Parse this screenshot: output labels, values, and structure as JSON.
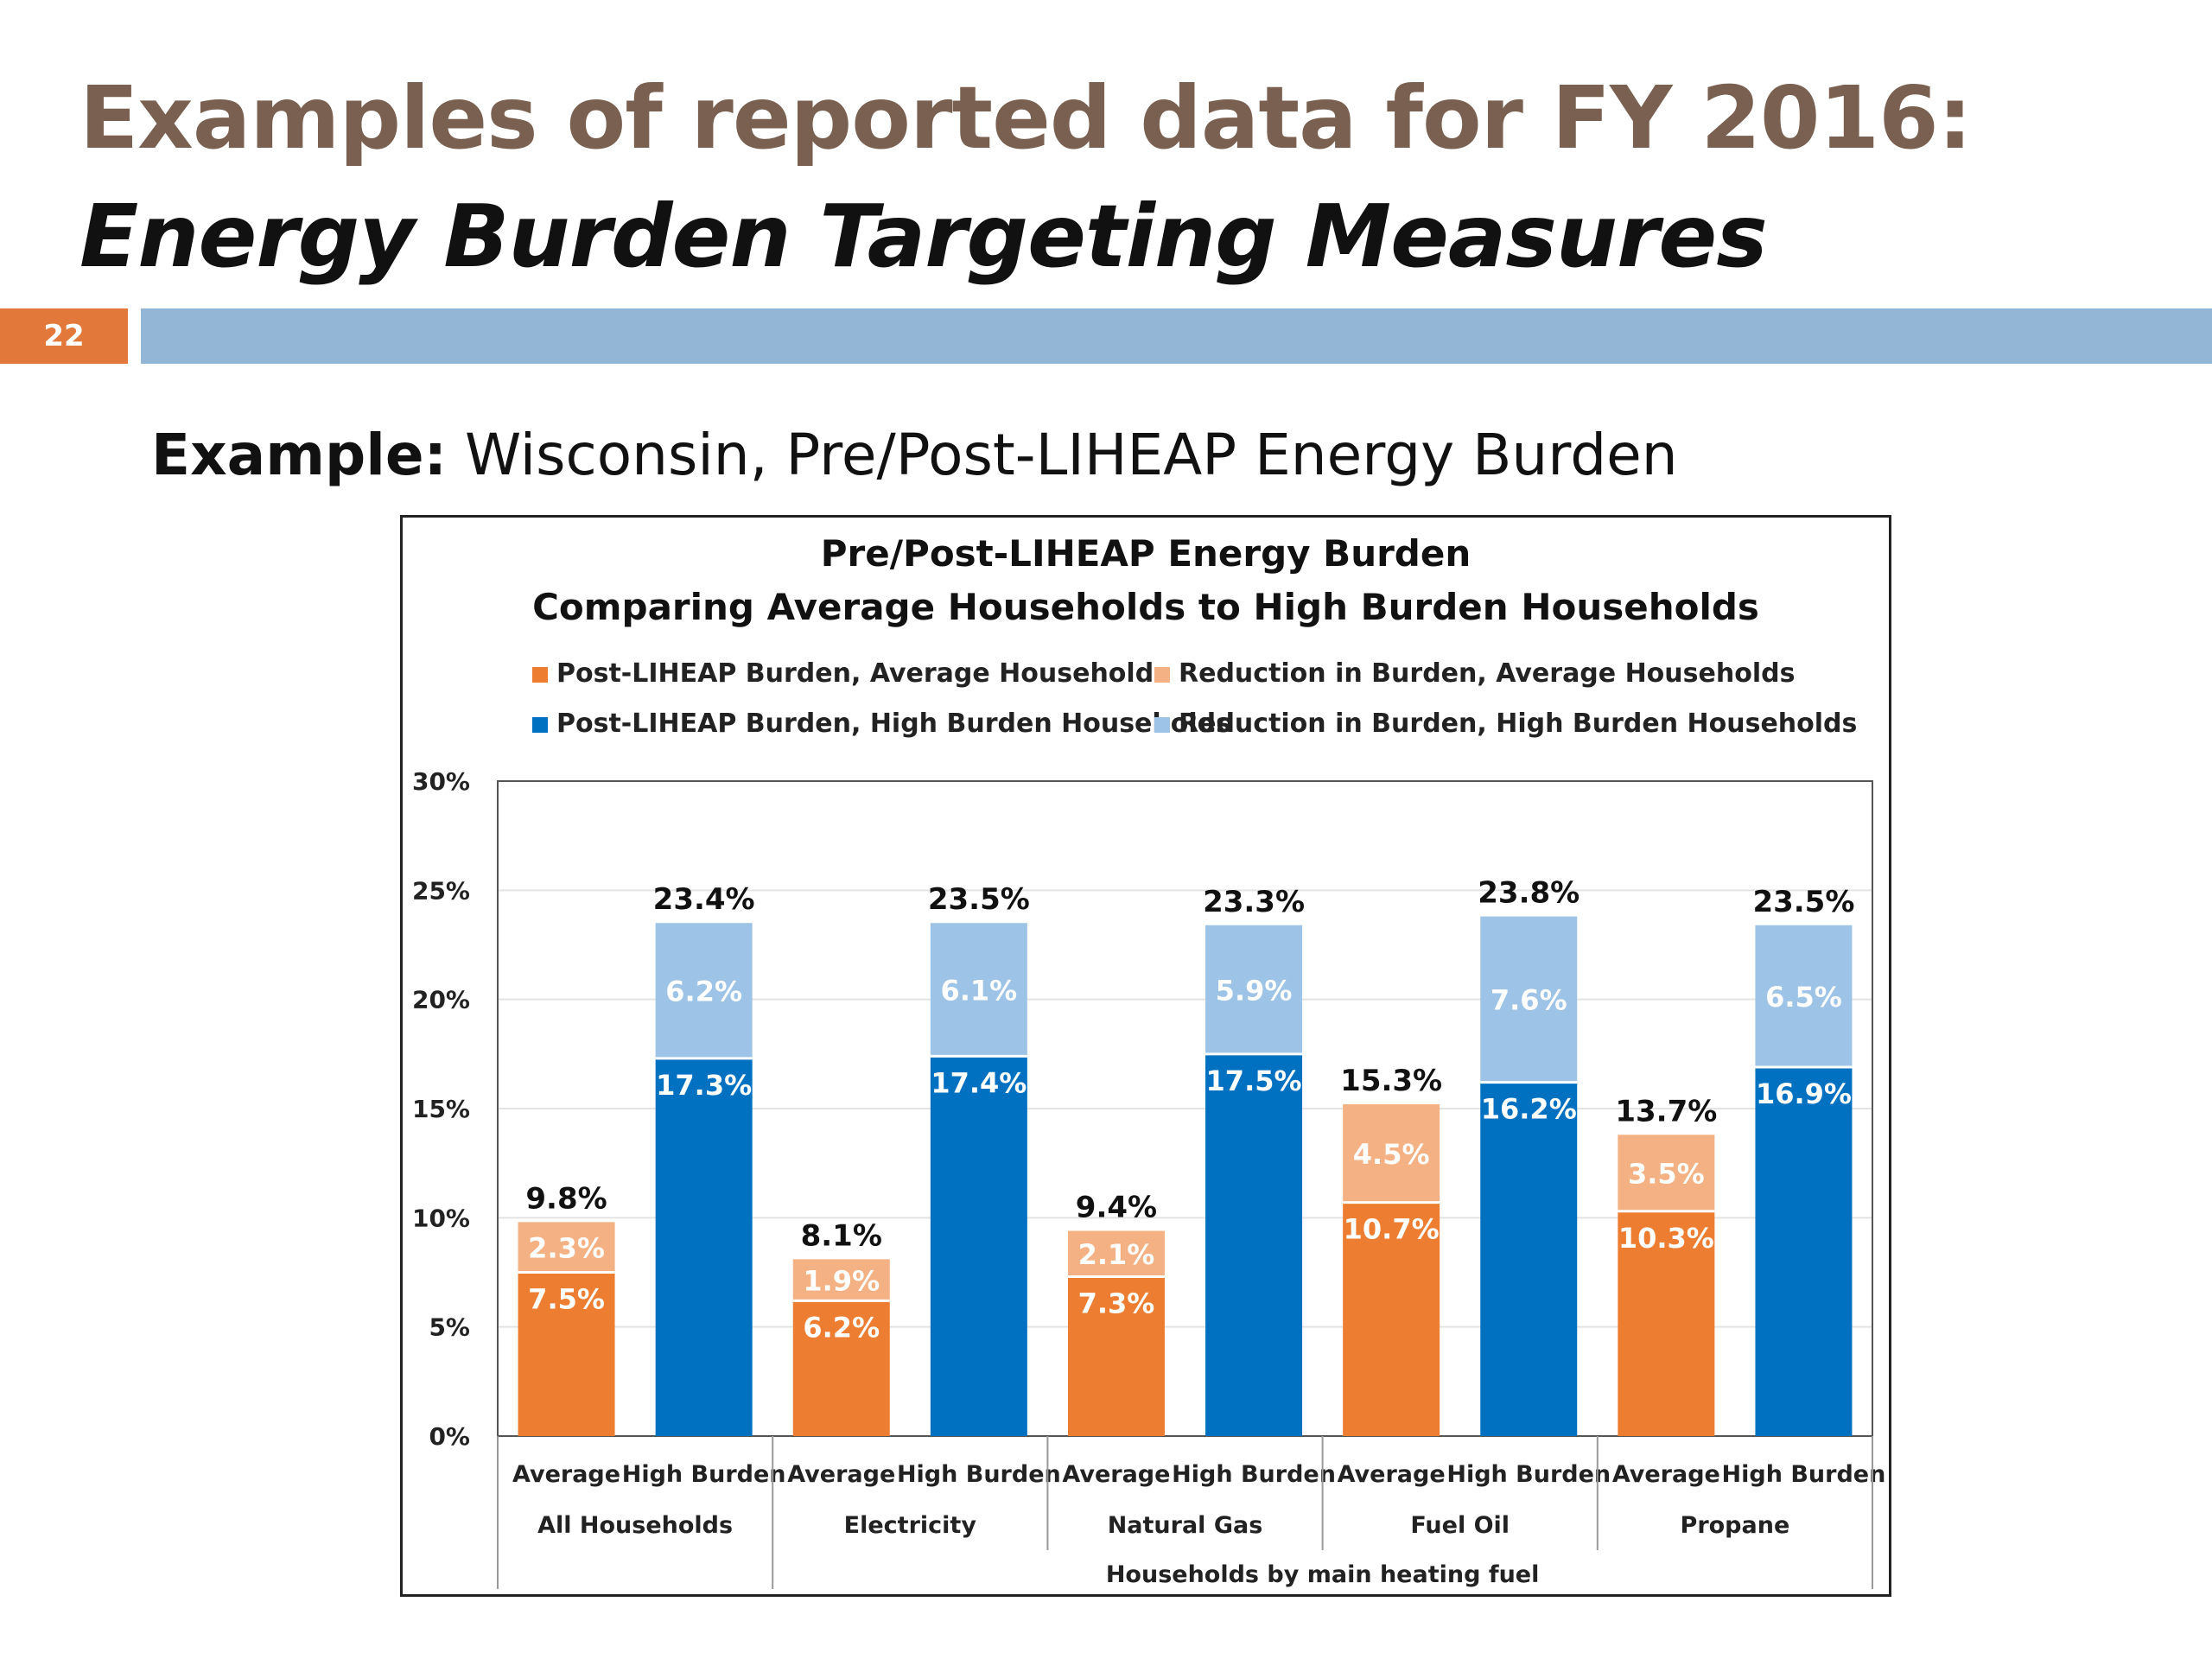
{
  "slide": {
    "title": "Examples of reported data for FY 2016:",
    "subtitle": "Energy Burden Targeting Measures",
    "page_number": "22",
    "example_label": "Example:",
    "example_text": "Wisconsin, Pre/Post-LIHEAP Energy Burden"
  },
  "colors": {
    "post_average": "#ed7d31",
    "reduction_average": "#f4b183",
    "post_high": "#0070c0",
    "reduction_high": "#9dc3e6",
    "title_brown": "#7a6050",
    "badge_orange": "#e2793a",
    "rule_blue": "#93b6d6"
  },
  "chart_data": {
    "type": "bar",
    "stacked": true,
    "title_lines": [
      "Pre/Post-LIHEAP Energy Burden",
      "Comparing Average Households to High Burden Households"
    ],
    "legend": [
      {
        "label": "Post-LIHEAP Burden, Average Households",
        "color": "#ed7d31"
      },
      {
        "label": "Reduction in Burden, Average Households",
        "color": "#f4b183"
      },
      {
        "label": "Post-LIHEAP Burden, High Burden Households",
        "color": "#0070c0"
      },
      {
        "label": "Reduction in Burden, High Burden Households",
        "color": "#9dc3e6"
      }
    ],
    "legend_placement": "top",
    "y_axis": {
      "min": 0,
      "max": 30,
      "step": 5,
      "tick_labels": [
        "0%",
        "5%",
        "10%",
        "15%",
        "20%",
        "25%",
        "30%"
      ]
    },
    "gridlines": true,
    "groups": [
      {
        "name": "All Households",
        "bars": [
          {
            "label": "Average",
            "type": "average",
            "post": 7.5,
            "reduction": 2.3,
            "total": 9.8,
            "post_label": "7.5%",
            "reduction_label": "2.3%",
            "total_label": "9.8%"
          },
          {
            "label": "High Burden",
            "type": "high",
            "post": 17.3,
            "reduction": 6.2,
            "total": 23.4,
            "post_label": "17.3%",
            "reduction_label": "6.2%",
            "total_label": "23.4%"
          }
        ]
      },
      {
        "name": "Electricity",
        "bars": [
          {
            "label": "Average",
            "type": "average",
            "post": 6.2,
            "reduction": 1.9,
            "total": 8.1,
            "post_label": "6.2%",
            "reduction_label": "1.9%",
            "total_label": "8.1%"
          },
          {
            "label": "High Burden",
            "type": "high",
            "post": 17.4,
            "reduction": 6.1,
            "total": 23.5,
            "post_label": "17.4%",
            "reduction_label": "6.1%",
            "total_label": "23.5%"
          }
        ]
      },
      {
        "name": "Natural Gas",
        "bars": [
          {
            "label": "Average",
            "type": "average",
            "post": 7.3,
            "reduction": 2.1,
            "total": 9.4,
            "post_label": "7.3%",
            "reduction_label": "2.1%",
            "total_label": "9.4%"
          },
          {
            "label": "High Burden",
            "type": "high",
            "post": 17.5,
            "reduction": 5.9,
            "total": 23.3,
            "post_label": "17.5%",
            "reduction_label": "5.9%",
            "total_label": "23.3%"
          }
        ]
      },
      {
        "name": "Fuel Oil",
        "bars": [
          {
            "label": "Average",
            "type": "average",
            "post": 10.7,
            "reduction": 4.5,
            "total": 15.3,
            "post_label": "10.7%",
            "reduction_label": "4.5%",
            "total_label": "15.3%"
          },
          {
            "label": "High Burden",
            "type": "high",
            "post": 16.2,
            "reduction": 7.6,
            "total": 23.8,
            "post_label": "16.2%",
            "reduction_label": "7.6%",
            "total_label": "23.8%"
          }
        ]
      },
      {
        "name": "Propane",
        "bars": [
          {
            "label": "Average",
            "type": "average",
            "post": 10.3,
            "reduction": 3.5,
            "total": 13.7,
            "post_label": "10.3%",
            "reduction_label": "3.5%",
            "total_label": "13.7%"
          },
          {
            "label": "High Burden",
            "type": "high",
            "post": 16.9,
            "reduction": 6.5,
            "total": 23.5,
            "post_label": "16.9%",
            "reduction_label": "6.5%",
            "total_label": "23.5%"
          }
        ]
      }
    ],
    "supergroup_label": "Households by main heating fuel"
  }
}
